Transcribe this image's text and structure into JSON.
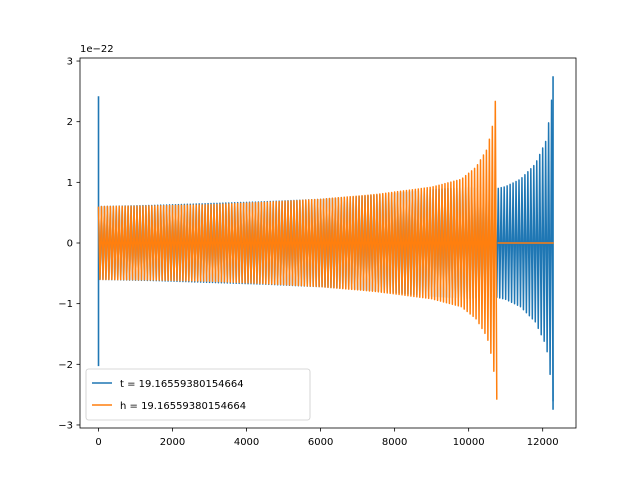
{
  "chart_data": {
    "type": "line",
    "title": "",
    "xlabel": "",
    "ylabel": "",
    "y_offset_label": "1e−22",
    "y_scale_factor": 1e-22,
    "xlim": [
      -500,
      12900
    ],
    "ylim": [
      -3.05,
      3.05
    ],
    "x_ticks": [
      0,
      2000,
      4000,
      6000,
      8000,
      10000,
      12000
    ],
    "x_tick_labels": [
      "0",
      "2000",
      "4000",
      "6000",
      "8000",
      "10000",
      "12000"
    ],
    "y_ticks": [
      -3,
      -2,
      -1,
      0,
      1,
      2,
      3
    ],
    "y_tick_labels": [
      "−3",
      "−2",
      "−1",
      "0",
      "1",
      "2",
      "3"
    ],
    "grid": false,
    "legend_position": "lower-left",
    "series": [
      {
        "name": "t = 19.16559380154664",
        "color": "#1f77b4",
        "envelope": {
          "x": [
            0,
            1500,
            3000,
            4500,
            6000,
            7500,
            9000,
            10000,
            10600,
            10800,
            11000,
            11400,
            11800,
            12100,
            12250,
            12300
          ],
          "amplitude": [
            0.6,
            0.62,
            0.65,
            0.68,
            0.72,
            0.79,
            0.88,
            0.92,
            0.88,
            0.9,
            0.93,
            1.05,
            1.3,
            1.7,
            2.4,
            2.75
          ]
        },
        "spikes": [
          {
            "x": 0,
            "min": -2.03,
            "max": 2.42
          },
          {
            "x": 12280,
            "min": -2.75,
            "max": 2.75
          }
        ]
      },
      {
        "name": "h = 19.16559380154664",
        "color": "#ff7f0e",
        "envelope": {
          "x": [
            0,
            1500,
            3000,
            4500,
            6000,
            7500,
            9000,
            9800,
            10200,
            10500,
            10650,
            10750,
            10780
          ],
          "amplitude": [
            0.6,
            0.61,
            0.63,
            0.67,
            0.72,
            0.8,
            0.92,
            1.05,
            1.25,
            1.55,
            1.95,
            2.5,
            2.75
          ]
        },
        "flat_segment": {
          "x_start": 10780,
          "x_end": 12300,
          "value": 0
        }
      }
    ]
  }
}
